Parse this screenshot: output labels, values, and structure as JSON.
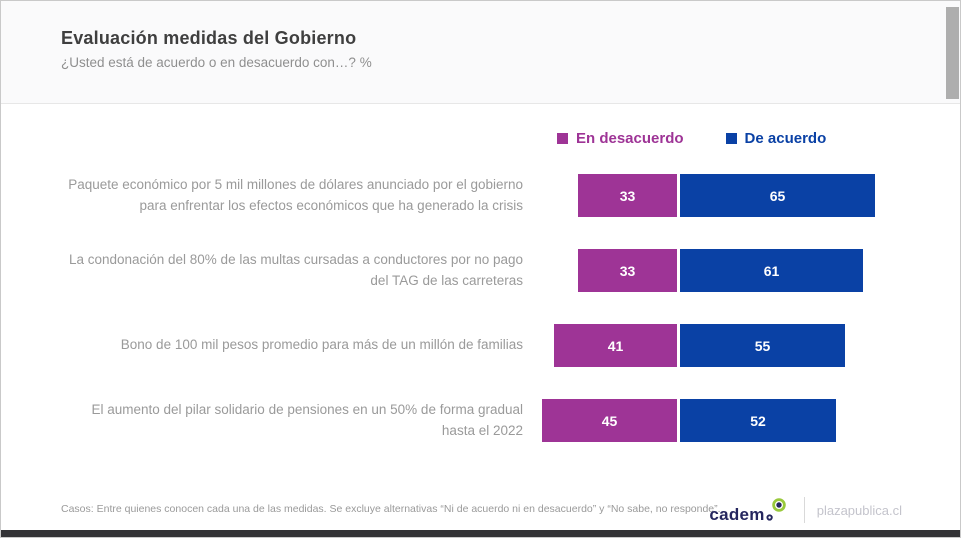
{
  "chart_data": {
    "type": "bar",
    "orientation": "horizontal-diverging-stacked",
    "title": "Evaluación medidas del Gobierno",
    "subtitle": "¿Usted está de acuerdo o en desacuerdo con…? %",
    "unit": "%",
    "legend_position": "top-right",
    "value_labels": "inside-white-bold",
    "axis_hidden": true,
    "xlim": [
      0,
      100
    ],
    "categories": [
      "Paquete económico por 5 mil millones de dólares anunciado por el gobierno para enfrentar los efectos económicos que ha generado la crisis",
      "La condonación del 80% de las multas cursadas a conductores por no pago del TAG de las carreteras",
      "Bono de 100 mil pesos promedio para más de un millón de familias",
      "El aumento del pilar solidario de pensiones en un 50% de forma gradual hasta el 2022"
    ],
    "series": [
      {
        "name": "En desacuerdo",
        "color": "#9e3496",
        "values": [
          33,
          33,
          41,
          45
        ]
      },
      {
        "name": "De acuerdo",
        "color": "#0a41a5",
        "values": [
          65,
          61,
          55,
          52
        ]
      }
    ]
  },
  "footer": {
    "note": "Casos: Entre quienes conocen cada una de las medidas. Se excluye alternativas “Ni de acuerdo ni en desacuerdo” y “No sabe, no responde”.",
    "brand": "cadem",
    "site": "plazapublica.cl"
  },
  "logo_colors": {
    "navy": "#25265e",
    "green_ring": "#99c93c"
  }
}
